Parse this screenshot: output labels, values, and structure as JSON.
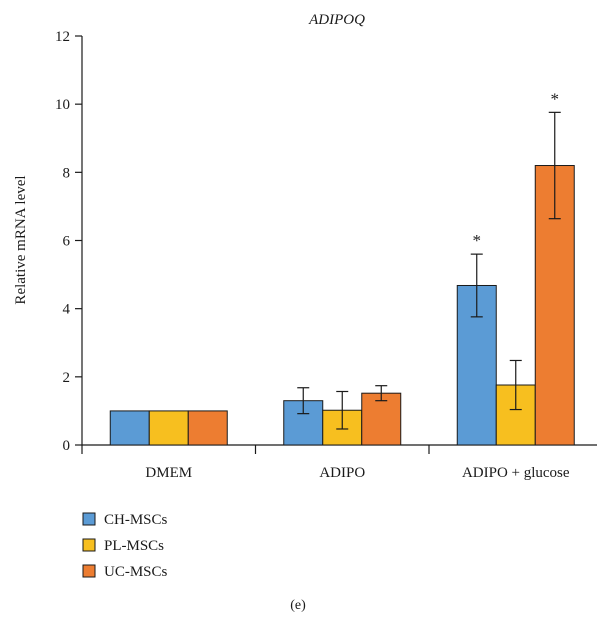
{
  "chart_data": {
    "type": "bar",
    "title": "ADIPOQ",
    "xlabel": "",
    "ylabel": "Relative mRNA level",
    "ylim": [
      0,
      12
    ],
    "yticks": [
      0,
      2,
      4,
      6,
      8,
      10,
      12
    ],
    "categories": [
      "DMEM",
      "ADIPO",
      "ADIPO + glucose"
    ],
    "series": [
      {
        "name": "CH-MSCs",
        "color": "#5b9bd5",
        "values": [
          1.0,
          1.3,
          4.68
        ],
        "errors": [
          0,
          0.38,
          0.92
        ],
        "significance": [
          "",
          "",
          "*"
        ]
      },
      {
        "name": "PL-MSCs",
        "color": "#f7bf1f",
        "values": [
          1.0,
          1.02,
          1.76
        ],
        "errors": [
          0,
          0.55,
          0.72
        ],
        "significance": [
          "",
          "",
          ""
        ]
      },
      {
        "name": "UC-MSCs",
        "color": "#ed7d31",
        "values": [
          1.0,
          1.52,
          8.2
        ],
        "errors": [
          0,
          0.22,
          1.56
        ],
        "significance": [
          "",
          "",
          "*"
        ]
      }
    ],
    "legend_position": "bottom-left",
    "grid": false
  },
  "caption": "(e)"
}
